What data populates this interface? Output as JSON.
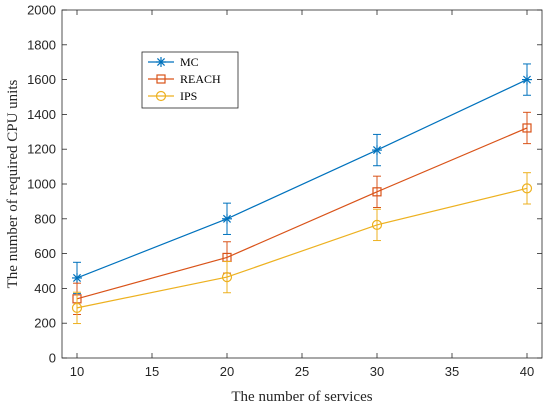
{
  "chart_data": {
    "type": "line",
    "xlabel": "The number of services",
    "ylabel": "The number of required CPU units",
    "x": [
      10,
      20,
      30,
      40
    ],
    "xlim": [
      9,
      41
    ],
    "ylim": [
      0,
      2000
    ],
    "xticks": [
      10,
      15,
      20,
      25,
      30,
      35,
      40
    ],
    "yticks": [
      0,
      200,
      400,
      600,
      800,
      1000,
      1200,
      1400,
      1600,
      1800,
      2000
    ],
    "grid": false,
    "legend_position": "top-left",
    "series": [
      {
        "name": "MC",
        "color": "#0072BD",
        "marker": "asterisk",
        "values": [
          460,
          800,
          1195,
          1600
        ],
        "errors": [
          90,
          90,
          90,
          90
        ]
      },
      {
        "name": "REACH",
        "color": "#D95319",
        "marker": "square",
        "values": [
          340,
          578,
          955,
          1322
        ],
        "errors": [
          90,
          90,
          90,
          90
        ]
      },
      {
        "name": "IPS",
        "color": "#EDB120",
        "marker": "circle",
        "values": [
          288,
          465,
          765,
          975
        ],
        "errors": [
          90,
          90,
          90,
          90
        ]
      }
    ]
  }
}
